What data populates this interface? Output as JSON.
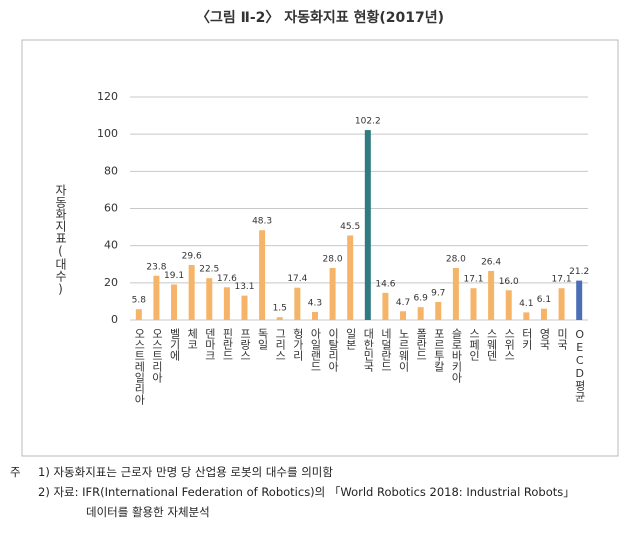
{
  "chart_data": {
    "type": "bar",
    "title": "〈그림 Ⅱ-2〉 자동화지표 현황(2017년)",
    "y_label": "자동화지표(대수)",
    "categories": [
      "오스트레일리아",
      "오스트리아",
      "벨기에",
      "체코",
      "덴마크",
      "핀란드",
      "프랑스",
      "독일",
      "그리스",
      "헝가리",
      "아일랜드",
      "이탈리아",
      "일본",
      "대한민국",
      "네덜란드",
      "노르웨이",
      "폴란드",
      "포르투칼",
      "슬로바키아",
      "스페인",
      "스웨덴",
      "스위스",
      "터키",
      "영국",
      "미국",
      "OECD평균"
    ],
    "values": [
      5.8,
      23.8,
      19.1,
      29.6,
      22.5,
      17.6,
      13.1,
      48.3,
      1.5,
      17.4,
      4.3,
      28.0,
      45.5,
      102.2,
      14.6,
      4.7,
      6.9,
      9.7,
      28.0,
      17.1,
      26.4,
      16.0,
      4.1,
      6.1,
      17.1,
      21.2
    ],
    "value_labels": [
      "5.8",
      "23.8",
      "19.1",
      "29.6",
      "22.5",
      "17.6",
      "13.1",
      "48.3",
      "1.5",
      "17.4",
      "4.3",
      "28.0",
      "45.5",
      "102.2",
      "14.6",
      "4.7",
      "6.9",
      "9.7",
      "28.0",
      "17.1",
      "26.4",
      "16.0",
      "4.1",
      "6.1",
      "17.1",
      "21.2"
    ],
    "colors": [
      "#f5b467",
      "#f5b467",
      "#f5b467",
      "#f5b467",
      "#f5b467",
      "#f5b467",
      "#f5b467",
      "#f5b467",
      "#f5b467",
      "#f5b467",
      "#f5b467",
      "#f5b467",
      "#f5b467",
      "#2e7b80",
      "#f5b467",
      "#f5b467",
      "#f5b467",
      "#f5b467",
      "#f5b467",
      "#f5b467",
      "#f5b467",
      "#f5b467",
      "#f5b467",
      "#f5b467",
      "#f5b467",
      "#4a6fb8"
    ],
    "ylim": [
      0,
      120
    ],
    "yticks": [
      0,
      20,
      40,
      60,
      80,
      100,
      120
    ],
    "grid": true
  },
  "notes": {
    "label": "주",
    "items": [
      "1) 자동화지표는 근로자 만명 당 산업용 로봇의 대수를 의미함",
      "2) 자료: IFR(International Federation of Robotics)의 「World Robotics 2018: Industrial Robots」",
      "데이터를 활용한 자체분석"
    ]
  }
}
